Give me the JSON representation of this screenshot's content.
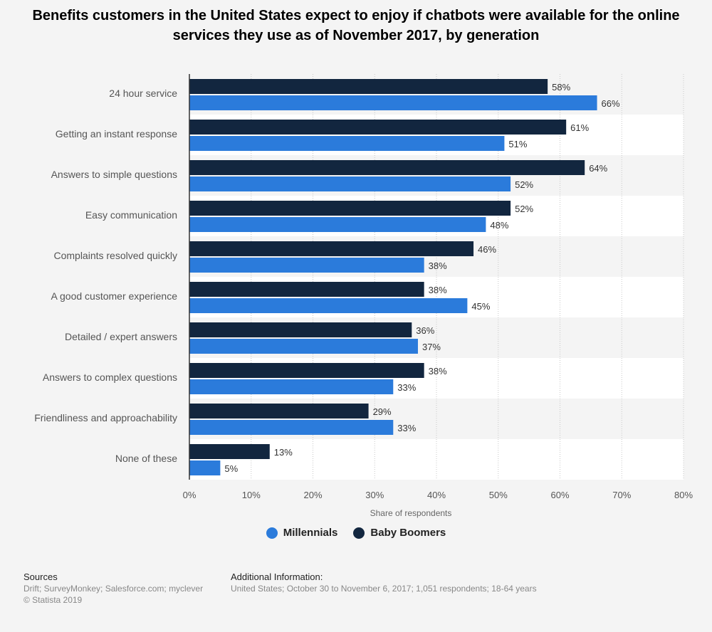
{
  "title": "Benefits customers in the United States expect to enjoy if chatbots were available for the online services they use as of November 2017, by generation",
  "colors": {
    "millennials": "#2b7bdb",
    "baby_boomers": "#12263f",
    "background": "#f4f4f4",
    "band": "#ffffff"
  },
  "legend": {
    "millennials": "Millennials",
    "baby_boomers": "Baby Boomers"
  },
  "chart_data": {
    "type": "bar",
    "orientation": "horizontal",
    "title": "Benefits customers in the United States expect to enjoy if chatbots were available for the online services they use as of November 2017, by generation",
    "xlabel": "Share of respondents",
    "ylabel": "",
    "xlim": [
      0,
      80
    ],
    "x_ticks": [
      "0%",
      "10%",
      "20%",
      "30%",
      "40%",
      "50%",
      "60%",
      "70%",
      "80%"
    ],
    "grid": "vertical dotted",
    "legend_position": "bottom-center",
    "categories": [
      "24 hour service",
      "Getting an instant response",
      "Answers to simple questions",
      "Easy communication",
      "Complaints resolved quickly",
      "A good customer experience",
      "Detailed / expert answers",
      "Answers to complex questions",
      "Friendliness and approachability",
      "None of these"
    ],
    "series": [
      {
        "name": "Baby Boomers",
        "values": [
          58,
          61,
          64,
          52,
          46,
          38,
          36,
          38,
          29,
          13
        ]
      },
      {
        "name": "Millennials",
        "values": [
          66,
          51,
          52,
          48,
          38,
          45,
          37,
          33,
          33,
          5
        ]
      }
    ],
    "value_suffix": "%"
  },
  "footer": {
    "sources_heading": "Sources",
    "sources_text": "Drift; SurveyMonkey; Salesforce.com; myclever",
    "copyright": "© Statista 2019",
    "info_heading": "Additional Information:",
    "info_text": "United States; October 30 to November 6, 2017; 1,051 respondents; 18-64 years"
  }
}
